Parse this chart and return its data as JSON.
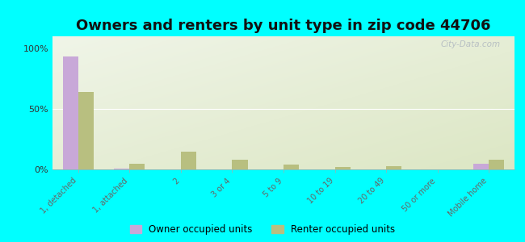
{
  "title": "Owners and renters by unit type in zip code 44706",
  "categories": [
    "1, detached",
    "1, attached",
    "2",
    "3 or 4",
    "5 to 9",
    "10 to 19",
    "20 to 49",
    "50 or more",
    "Mobile home"
  ],
  "owner_values": [
    93,
    1,
    0,
    0,
    0,
    0,
    0,
    0,
    5
  ],
  "renter_values": [
    64,
    5,
    15,
    8,
    4,
    2,
    3,
    0,
    8
  ],
  "owner_color": "#c8a8d8",
  "renter_color": "#b8bf80",
  "background_color": "#00ffff",
  "grad_top_color": "#c8d8a0",
  "grad_bottom_color": "#f0f5e8",
  "ylabel_ticks": [
    "0%",
    "50%",
    "100%"
  ],
  "ytick_values": [
    0,
    50,
    100
  ],
  "ylim": [
    0,
    110
  ],
  "legend_owner": "Owner occupied units",
  "legend_renter": "Renter occupied units",
  "bar_width": 0.3,
  "title_fontsize": 13,
  "tick_fontsize": 7,
  "watermark": "City-Data.com"
}
